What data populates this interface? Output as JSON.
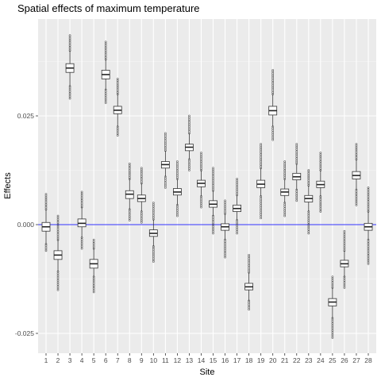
{
  "chart_data": {
    "type": "boxplot",
    "title": "Spatial effects of maximum temperature",
    "xlabel": "Site",
    "ylabel": "Effects",
    "categories": [
      "1",
      "2",
      "3",
      "4",
      "5",
      "6",
      "7",
      "8",
      "9",
      "10",
      "11",
      "12",
      "13",
      "14",
      "15",
      "16",
      "17",
      "18",
      "19",
      "20",
      "21",
      "22",
      "23",
      "24",
      "25",
      "26",
      "27",
      "28"
    ],
    "y_ticks": [
      -0.025,
      0.0,
      0.025
    ],
    "y_tick_labels": [
      "-0.025",
      "0.000",
      "0.025"
    ],
    "ylim": [
      -0.0295,
      0.0475
    ],
    "grid": true,
    "reference_line": {
      "y": 0.0,
      "color": "#3333ff"
    },
    "panel_color": "#ebebeb",
    "boxes": [
      {
        "site": "1",
        "min": -0.0045,
        "q1": -0.0015,
        "median": -0.0005,
        "q3": 0.0005,
        "max": 0.0035,
        "out_low": -0.006,
        "out_high": 0.007
      },
      {
        "site": "2",
        "min": -0.0108,
        "q1": -0.008,
        "median": -0.007,
        "q3": -0.006,
        "max": -0.0035,
        "out_low": -0.015,
        "out_high": 0.002
      },
      {
        "site": "3",
        "min": 0.0318,
        "q1": 0.035,
        "median": 0.036,
        "q3": 0.037,
        "max": 0.04,
        "out_low": 0.029,
        "out_high": 0.0435
      },
      {
        "site": "4",
        "min": -0.003,
        "q1": -0.0005,
        "median": 0.0003,
        "q3": 0.0013,
        "max": 0.004,
        "out_low": -0.0055,
        "out_high": 0.0075
      },
      {
        "site": "5",
        "min": -0.012,
        "q1": -0.01,
        "median": -0.009,
        "q3": -0.008,
        "max": -0.0055,
        "out_low": -0.0155,
        "out_high": -0.0035
      },
      {
        "site": "6",
        "min": 0.031,
        "q1": 0.0335,
        "median": 0.0345,
        "q3": 0.0355,
        "max": 0.038,
        "out_low": 0.028,
        "out_high": 0.042
      },
      {
        "site": "7",
        "min": 0.0225,
        "q1": 0.0255,
        "median": 0.0263,
        "q3": 0.0272,
        "max": 0.03,
        "out_low": 0.0205,
        "out_high": 0.0335
      },
      {
        "site": "8",
        "min": 0.0035,
        "q1": 0.006,
        "median": 0.007,
        "q3": 0.0078,
        "max": 0.0105,
        "out_low": 0.001,
        "out_high": 0.014
      },
      {
        "site": "9",
        "min": 0.003,
        "q1": 0.0053,
        "median": 0.006,
        "q3": 0.0068,
        "max": 0.0095,
        "out_low": 0.0005,
        "out_high": 0.013
      },
      {
        "site": "10",
        "min": -0.005,
        "q1": -0.0027,
        "median": -0.002,
        "q3": -0.0012,
        "max": 0.0012,
        "out_low": -0.0085,
        "out_high": 0.005
      },
      {
        "site": "11",
        "min": 0.011,
        "q1": 0.013,
        "median": 0.0138,
        "q3": 0.0145,
        "max": 0.017,
        "out_low": 0.0085,
        "out_high": 0.021
      },
      {
        "site": "12",
        "min": 0.0045,
        "q1": 0.0068,
        "median": 0.0075,
        "q3": 0.0083,
        "max": 0.0105,
        "out_low": 0.002,
        "out_high": 0.0145
      },
      {
        "site": "13",
        "min": 0.015,
        "q1": 0.017,
        "median": 0.0178,
        "q3": 0.0185,
        "max": 0.021,
        "out_low": 0.0125,
        "out_high": 0.025
      },
      {
        "site": "14",
        "min": 0.0065,
        "q1": 0.0087,
        "median": 0.0095,
        "q3": 0.0102,
        "max": 0.0125,
        "out_low": 0.004,
        "out_high": 0.0165
      },
      {
        "site": "15",
        "min": 0.002,
        "q1": 0.004,
        "median": 0.0047,
        "q3": 0.0055,
        "max": 0.0078,
        "out_low": -0.002,
        "out_high": 0.013
      },
      {
        "site": "16",
        "min": -0.0035,
        "q1": -0.0013,
        "median": -0.0005,
        "q3": 0.0002,
        "max": 0.0025,
        "out_low": -0.0075,
        "out_high": 0.0055
      },
      {
        "site": "17",
        "min": 0.001,
        "q1": 0.003,
        "median": 0.0037,
        "q3": 0.0045,
        "max": 0.0068,
        "out_low": -0.002,
        "out_high": 0.0105
      },
      {
        "site": "18",
        "min": -0.0175,
        "q1": -0.015,
        "median": -0.0143,
        "q3": -0.0135,
        "max": -0.011,
        "out_low": -0.0195,
        "out_high": -0.007
      },
      {
        "site": "19",
        "min": 0.0065,
        "q1": 0.0085,
        "median": 0.0093,
        "q3": 0.0102,
        "max": 0.013,
        "out_low": 0.0015,
        "out_high": 0.0185
      },
      {
        "site": "20",
        "min": 0.0225,
        "q1": 0.0252,
        "median": 0.0262,
        "q3": 0.0272,
        "max": 0.03,
        "out_low": 0.0195,
        "out_high": 0.0355
      },
      {
        "site": "21",
        "min": 0.005,
        "q1": 0.0067,
        "median": 0.0075,
        "q3": 0.0082,
        "max": 0.0105,
        "out_low": 0.002,
        "out_high": 0.0145
      },
      {
        "site": "22",
        "min": 0.008,
        "q1": 0.0103,
        "median": 0.011,
        "q3": 0.0118,
        "max": 0.014,
        "out_low": 0.0055,
        "out_high": 0.0185
      },
      {
        "site": "23",
        "min": 0.003,
        "q1": 0.0052,
        "median": 0.006,
        "q3": 0.0067,
        "max": 0.009,
        "out_low": -0.002,
        "out_high": 0.0125
      },
      {
        "site": "24",
        "min": 0.0065,
        "q1": 0.0085,
        "median": 0.0092,
        "q3": 0.01,
        "max": 0.0125,
        "out_low": 0.003,
        "out_high": 0.0165
      },
      {
        "site": "25",
        "min": -0.0215,
        "q1": -0.0187,
        "median": -0.0178,
        "q3": -0.017,
        "max": -0.0145,
        "out_low": -0.026,
        "out_high": -0.012
      },
      {
        "site": "26",
        "min": -0.012,
        "q1": -0.0097,
        "median": -0.009,
        "q3": -0.0082,
        "max": -0.006,
        "out_low": -0.0145,
        "out_high": -0.0015
      },
      {
        "site": "27",
        "min": 0.008,
        "q1": 0.0105,
        "median": 0.0113,
        "q3": 0.0122,
        "max": 0.015,
        "out_low": 0.0045,
        "out_high": 0.0185
      },
      {
        "site": "28",
        "min": -0.0035,
        "q1": -0.0013,
        "median": -0.0005,
        "q3": 0.0003,
        "max": 0.003,
        "out_low": -0.009,
        "out_high": 0.0085
      }
    ]
  }
}
